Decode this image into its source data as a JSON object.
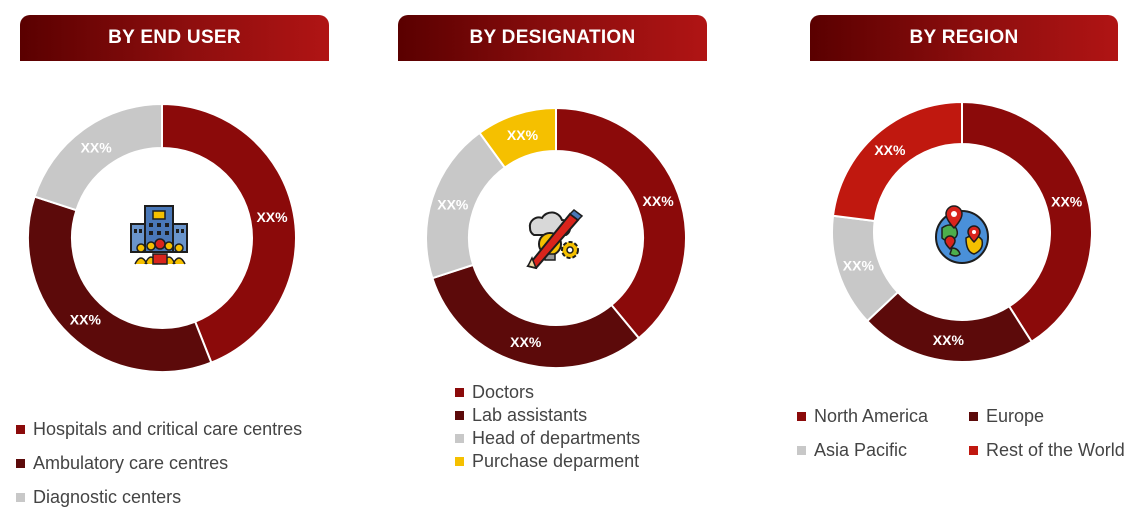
{
  "colors": {
    "dark_red": "#8b0a0a",
    "maroon": "#5c0a0a",
    "gray": "#c8c8c8",
    "yellow": "#f5c000",
    "red": "#c0180f",
    "banner_start": "#5a0000",
    "banner_end": "#b01414"
  },
  "chart_data": [
    {
      "type": "pie",
      "title": "BY END USER",
      "icon": "hospital-icon",
      "series": [
        {
          "name": "Hospitals and critical care centres",
          "value": 44,
          "label": "XX%",
          "color": "#8b0a0a"
        },
        {
          "name": "Ambulatory care centres",
          "value": 36,
          "label": "XX%",
          "color": "#5c0a0a"
        },
        {
          "name": "Diagnostic centers",
          "value": 20,
          "label": "XX%",
          "color": "#c8c8c8"
        }
      ],
      "legend_position": "bottom"
    },
    {
      "type": "pie",
      "title": "BY DESIGNATION",
      "icon": "idea-pencil-gear-icon",
      "series": [
        {
          "name": "Doctors",
          "value": 39,
          "label": "XX%",
          "color": "#8b0a0a"
        },
        {
          "name": "Lab assistants",
          "value": 31,
          "label": "XX%",
          "color": "#5c0a0a"
        },
        {
          "name": "Head of departments",
          "value": 20,
          "label": "XX%",
          "color": "#c8c8c8"
        },
        {
          "name": "Purchase deparment",
          "value": 10,
          "label": "XX%",
          "color": "#f5c000"
        }
      ],
      "legend_position": "bottom"
    },
    {
      "type": "pie",
      "title": "BY REGION",
      "icon": "globe-location-icon",
      "series": [
        {
          "name": "North America",
          "value": 41,
          "label": "XX%",
          "color": "#8b0a0a"
        },
        {
          "name": "Europe",
          "value": 22,
          "label": "XX%",
          "color": "#5c0a0a"
        },
        {
          "name": "Asia Pacific",
          "value": 14,
          "label": "XX%",
          "color": "#c8c8c8"
        },
        {
          "name": "Rest of the World",
          "value": 23,
          "label": "XX%",
          "color": "#c0180f"
        }
      ],
      "legend_position": "bottom"
    }
  ]
}
